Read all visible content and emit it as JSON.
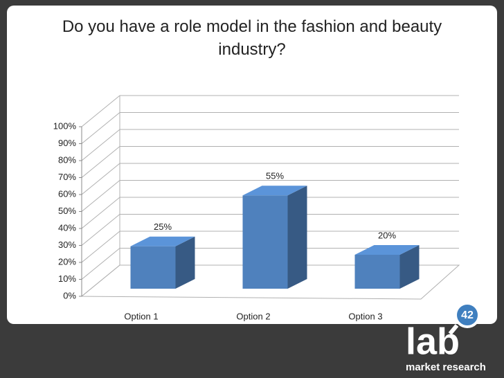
{
  "chart_data": {
    "type": "bar3d",
    "title": "Do you have a role model in the fashion and beauty industry?",
    "categories": [
      "Option 1",
      "Option 2",
      "Option 3"
    ],
    "values": [
      25,
      55,
      20
    ],
    "value_labels": [
      "25%",
      "55%",
      "20%"
    ],
    "color": "#4f81bd",
    "ylim": [
      0,
      100
    ],
    "yticks": [
      {
        "value": 0,
        "label": "0%"
      },
      {
        "value": 10,
        "label": "10%"
      },
      {
        "value": 20,
        "label": "20%"
      },
      {
        "value": 30,
        "label": "30%"
      },
      {
        "value": 40,
        "label": "40%"
      },
      {
        "value": 50,
        "label": "50%"
      },
      {
        "value": 60,
        "label": "60%"
      },
      {
        "value": 70,
        "label": "70%"
      },
      {
        "value": 80,
        "label": "80%"
      },
      {
        "value": 90,
        "label": "90%"
      },
      {
        "value": 100,
        "label": "100%"
      }
    ],
    "grid": true
  },
  "logo": {
    "text": "lab",
    "badge": "42",
    "tagline": "market research"
  }
}
